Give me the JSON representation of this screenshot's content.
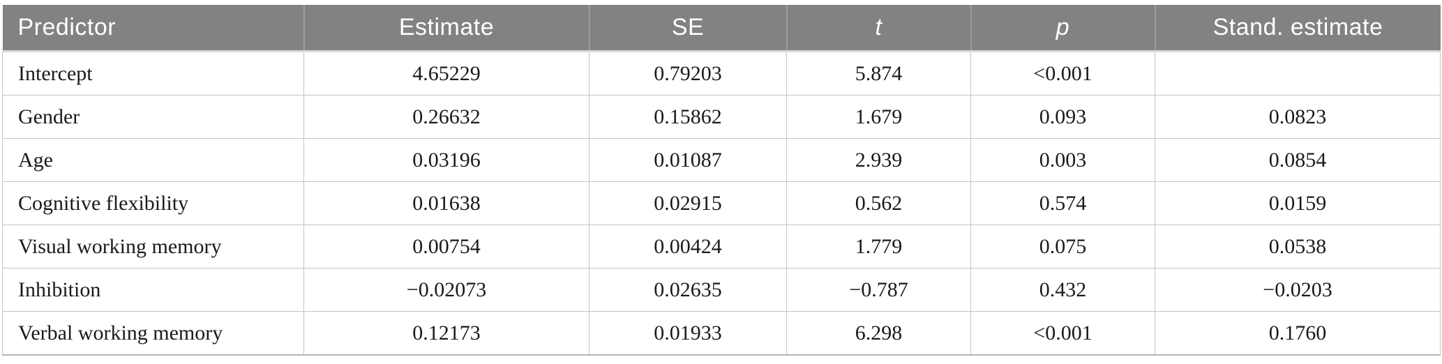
{
  "table": {
    "columns": [
      {
        "key": "predictor",
        "label": "Predictor"
      },
      {
        "key": "estimate",
        "label": "Estimate"
      },
      {
        "key": "se",
        "label": "SE"
      },
      {
        "key": "t",
        "label": "t"
      },
      {
        "key": "p",
        "label": "p"
      },
      {
        "key": "stand_estimate",
        "label": "Stand. estimate"
      }
    ],
    "rows": [
      [
        "Intercept",
        "4.65229",
        "0.79203",
        "5.874",
        "<0.001",
        ""
      ],
      [
        "Gender",
        "0.26632",
        "0.15862",
        "1.679",
        "0.093",
        "0.0823"
      ],
      [
        "Age",
        "0.03196",
        "0.01087",
        "2.939",
        "0.003",
        "0.0854"
      ],
      [
        "Cognitive flexibility",
        "0.01638",
        "0.02915",
        "0.562",
        "0.574",
        "0.0159"
      ],
      [
        "Visual working memory",
        "0.00754",
        "0.00424",
        "1.779",
        "0.075",
        "0.0538"
      ],
      [
        "Inhibition",
        "−0.02073",
        "0.02635",
        "−0.787",
        "0.432",
        "−0.0203"
      ],
      [
        "Verbal working memory",
        "0.12173",
        "0.01933",
        "6.298",
        "<0.001",
        "0.1760"
      ]
    ]
  },
  "colors": {
    "header_bg": "#828282",
    "header_text": "#ffffff",
    "header_divider": "#9c9c9c",
    "grid_line": "#c4c4c4",
    "body_text": "#1a1a1a",
    "background": "#ffffff"
  }
}
